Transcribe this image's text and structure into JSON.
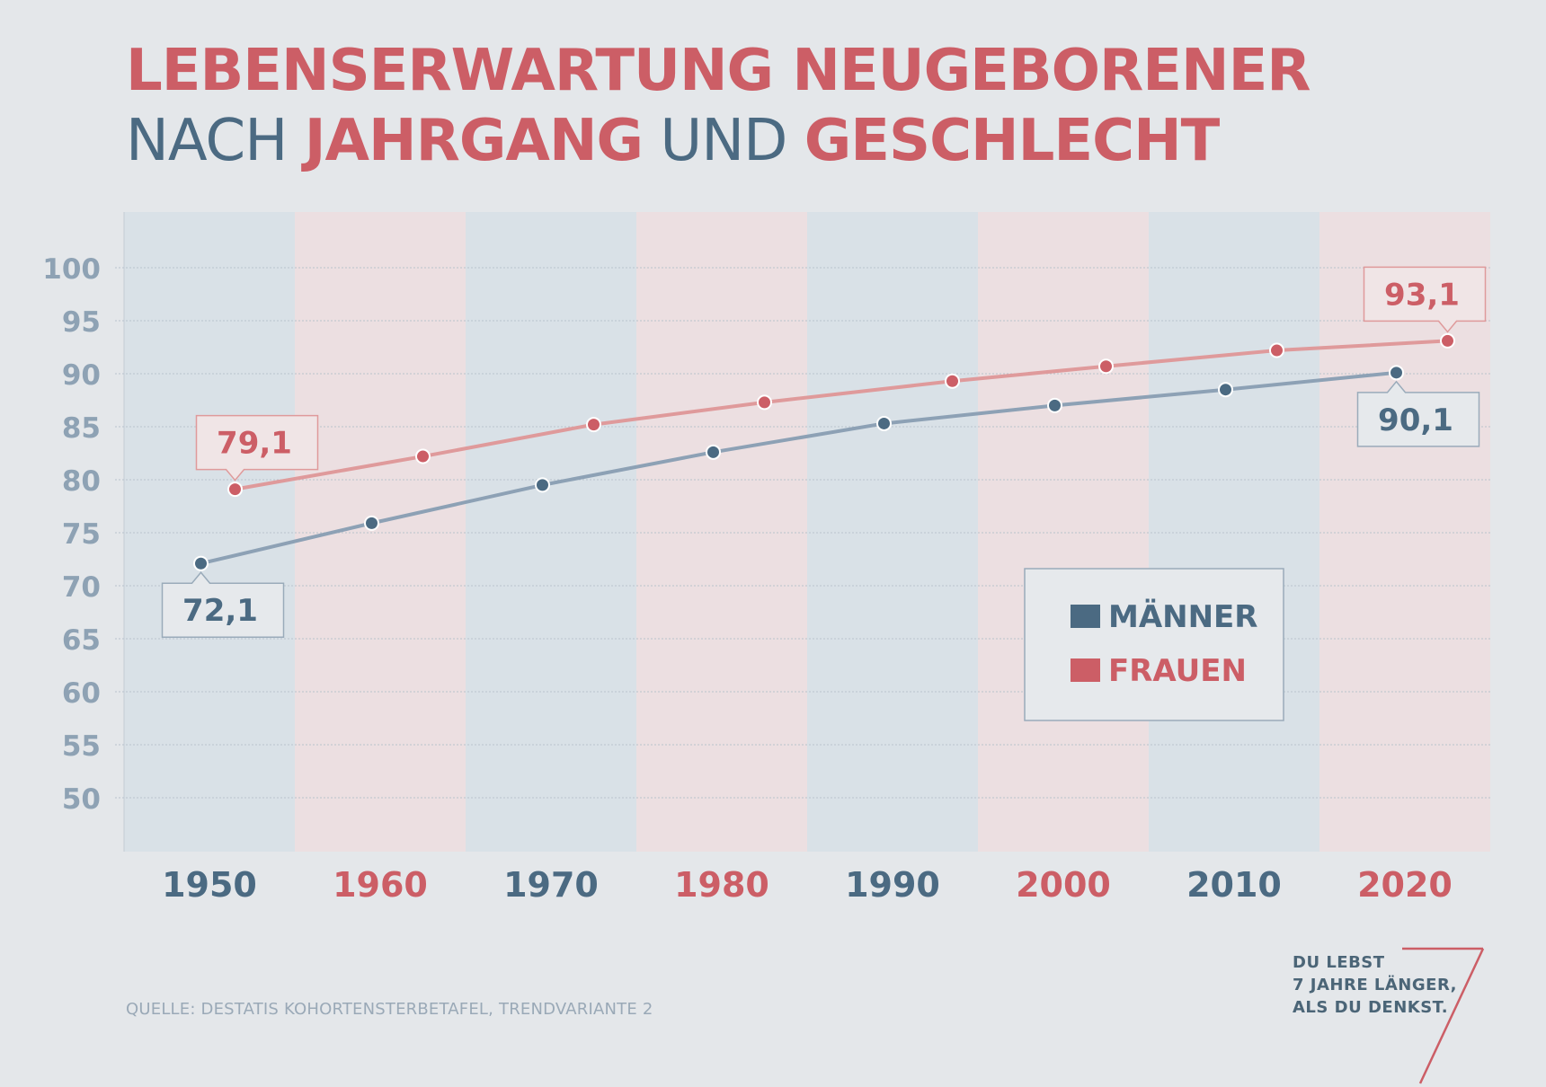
{
  "title": {
    "line1": "LEBENSERWARTUNG NEUGEBORENER",
    "line2_part1": "NACH ",
    "line2_part2": "JAHRGANG",
    "line2_part3": " UND ",
    "line2_part4": "GESCHLECHT"
  },
  "colors": {
    "men": "#4b6a82",
    "men_line": "#8da1b5",
    "women": "#cc5e66",
    "women_line": "#df9a9b",
    "band_blue": "#d9e1e7",
    "band_pink": "#ecdfe1",
    "axis_text": "#8ea2b4",
    "background": "#e4e7ea"
  },
  "chart_data": {
    "type": "line",
    "title": "LEBENSERWARTUNG NEUGEBORENER NACH JAHRGANG UND GESCHLECHT",
    "x_categories": [
      "1950",
      "1960",
      "1970",
      "1980",
      "1990",
      "2000",
      "2010",
      "2020"
    ],
    "y_ticks": [
      "100",
      "95",
      "90",
      "85",
      "80",
      "75",
      "70",
      "65",
      "60",
      "55",
      "50"
    ],
    "ylim": [
      45,
      105
    ],
    "grid": true,
    "series": [
      {
        "name": "MÄNNER",
        "x": [
          1949,
          1959,
          1969,
          1979,
          1989,
          1999,
          2009,
          2019
        ],
        "values": [
          72.1,
          75.9,
          79.5,
          82.6,
          85.3,
          87.0,
          88.5,
          90.1
        ]
      },
      {
        "name": "FRAUEN",
        "x": [
          1951,
          1962,
          1972,
          1982,
          1993,
          2002,
          2012,
          2022
        ],
        "values": [
          79.1,
          82.2,
          85.2,
          87.3,
          89.3,
          90.7,
          92.2,
          93.1
        ]
      }
    ],
    "annotations": [
      {
        "series": "MÄNNER",
        "point": 0,
        "label": "72,1",
        "position": "below"
      },
      {
        "series": "FRAUEN",
        "point": 0,
        "label": "79,1",
        "position": "above"
      },
      {
        "series": "FRAUEN",
        "point": 7,
        "label": "93,1",
        "position": "above"
      },
      {
        "series": "MÄNNER",
        "point": 7,
        "label": "90,1",
        "position": "below"
      }
    ],
    "legend": {
      "position": "bottom-right",
      "items": [
        {
          "label": "MÄNNER",
          "series": "MÄNNER"
        },
        {
          "label": "FRAUEN",
          "series": "FRAUEN"
        }
      ]
    }
  },
  "source": "QUELLE: DESTATIS KOHORTENSTERBETAFEL, TRENDVARIANTE 2",
  "tagline": {
    "line1": "DU LEBST",
    "line2": "7 JAHRE LÄNGER,",
    "line3": "ALS DU DENKST."
  }
}
